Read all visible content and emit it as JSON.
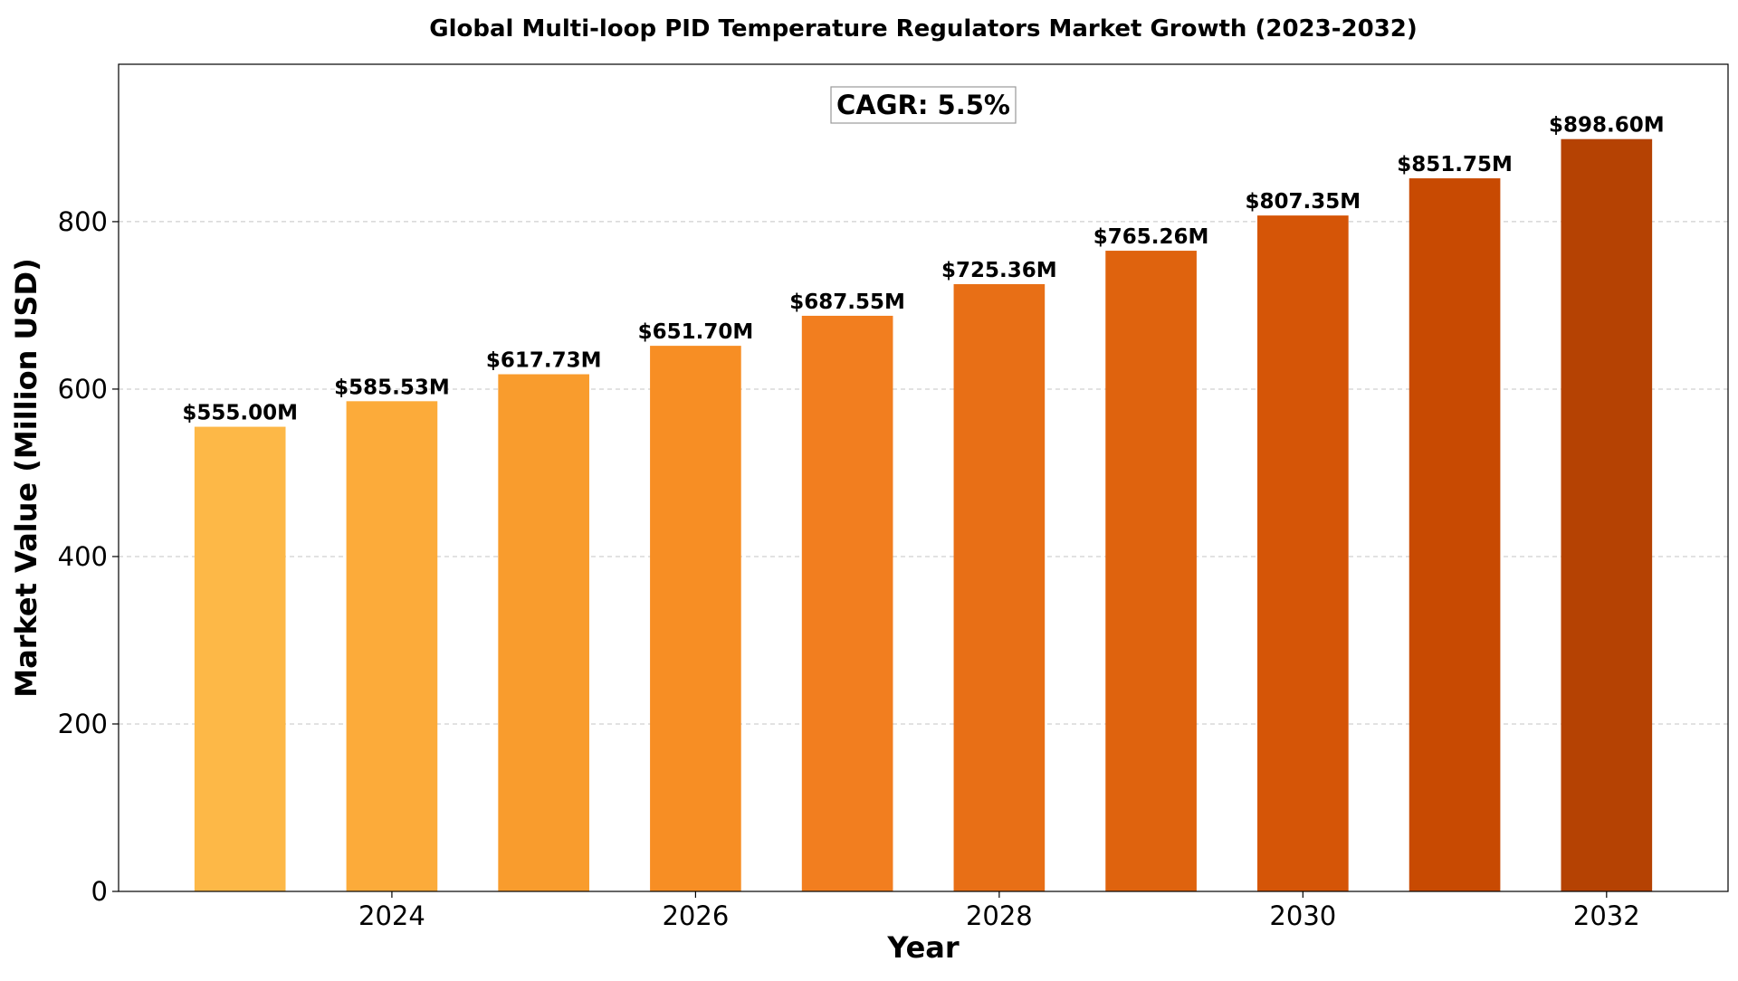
{
  "chart_data": {
    "type": "bar",
    "title": "Global Multi-loop PID Temperature Regulators Market Growth (2023-2032)",
    "xlabel": "Year",
    "ylabel": "Market Value (Million USD)",
    "x": [
      2023,
      2024,
      2025,
      2026,
      2027,
      2028,
      2029,
      2030,
      2031,
      2032
    ],
    "values": [
      555.0,
      585.53,
      617.73,
      651.7,
      687.55,
      725.36,
      765.26,
      807.35,
      851.75,
      898.6
    ],
    "data_labels": [
      "$555.00M",
      "$585.53M",
      "$617.73M",
      "$651.70M",
      "$687.55M",
      "$725.36M",
      "$765.26M",
      "$807.35M",
      "$851.75M",
      "$898.60M"
    ],
    "bar_colors": [
      "#fdb847",
      "#fcab3a",
      "#f99c2d",
      "#f78e24",
      "#f27e1f",
      "#e86f16",
      "#df630e",
      "#d55507",
      "#c84a02",
      "#b54203"
    ],
    "x_ticks": [
      2024,
      2026,
      2028,
      2030,
      2032
    ],
    "y_ticks": [
      0,
      200,
      400,
      600,
      800
    ],
    "xlim": [
      2022.2,
      2032.8
    ],
    "ylim": [
      0,
      988
    ],
    "grid": "horizontal dashed",
    "annotation": "CAGR: 5.5%"
  }
}
